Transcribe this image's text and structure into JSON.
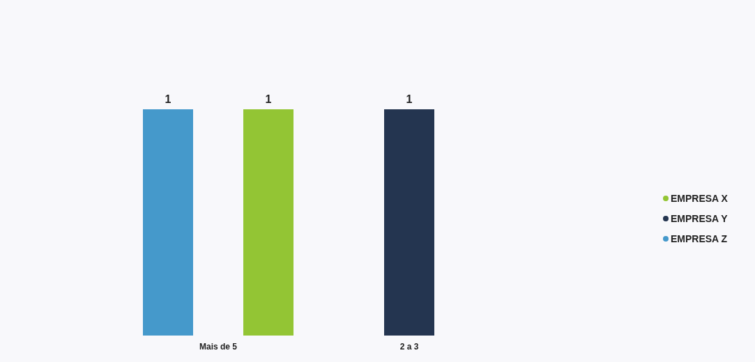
{
  "chart_data": {
    "type": "bar",
    "categories": [
      "Mais de 5",
      "2 a 3"
    ],
    "series": [
      {
        "name": "EMPRESA X",
        "color": "#93c534",
        "values": [
          1,
          null
        ]
      },
      {
        "name": "EMPRESA Y",
        "color": "#243550",
        "values": [
          null,
          1
        ]
      },
      {
        "name": "EMPRESA Z",
        "color": "#4599cb",
        "values": [
          1,
          null
        ]
      }
    ],
    "data_labels": true,
    "legend": "right",
    "grid": false
  }
}
